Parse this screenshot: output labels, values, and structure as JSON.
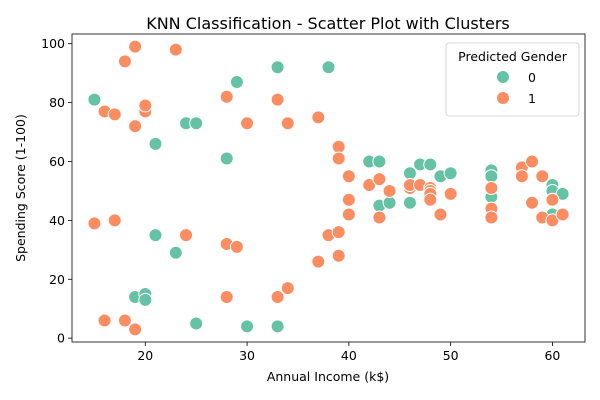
{
  "chart_data": {
    "type": "scatter",
    "title": "KNN Classification - Scatter Plot with Clusters",
    "xlabel": "Annual Income (k$)",
    "ylabel": "Spending Score (1-100)",
    "xlim": [
      12.8,
      63.2
    ],
    "ylim": [
      -1.3,
      103.3
    ],
    "xticks": [
      20,
      30,
      40,
      50,
      60
    ],
    "yticks": [
      0,
      20,
      40,
      60,
      80,
      100
    ],
    "grid": false,
    "legend": {
      "title": "Predicted Gender",
      "placement": "top-right"
    },
    "series": [
      {
        "name": "0",
        "color": "#66c2a5",
        "points": [
          [
            15,
            81
          ],
          [
            19,
            14
          ],
          [
            20,
            15
          ],
          [
            20,
            13
          ],
          [
            21,
            66
          ],
          [
            21,
            35
          ],
          [
            23,
            29
          ],
          [
            24,
            73
          ],
          [
            25,
            73
          ],
          [
            25,
            5
          ],
          [
            28,
            61
          ],
          [
            29,
            87
          ],
          [
            30,
            4
          ],
          [
            33,
            92
          ],
          [
            33,
            4
          ],
          [
            38,
            92
          ],
          [
            42,
            60
          ],
          [
            43,
            60
          ],
          [
            43,
            45
          ],
          [
            44,
            46
          ],
          [
            46,
            56
          ],
          [
            46,
            46
          ],
          [
            47,
            59
          ],
          [
            48,
            59
          ],
          [
            49,
            55
          ],
          [
            50,
            56
          ],
          [
            54,
            57
          ],
          [
            54,
            55
          ],
          [
            54,
            48
          ],
          [
            60,
            52
          ],
          [
            60,
            50
          ],
          [
            60,
            42
          ],
          [
            61,
            49
          ]
        ]
      },
      {
        "name": "1",
        "color": "#fc8d62",
        "points": [
          [
            15,
            39
          ],
          [
            16,
            77
          ],
          [
            16,
            6
          ],
          [
            17,
            76
          ],
          [
            17,
            40
          ],
          [
            18,
            94
          ],
          [
            18,
            6
          ],
          [
            19,
            99
          ],
          [
            19,
            72
          ],
          [
            19,
            3
          ],
          [
            20,
            77
          ],
          [
            20,
            79
          ],
          [
            23,
            98
          ],
          [
            24,
            35
          ],
          [
            28,
            82
          ],
          [
            28,
            32
          ],
          [
            28,
            14
          ],
          [
            29,
            31
          ],
          [
            30,
            73
          ],
          [
            33,
            81
          ],
          [
            33,
            14
          ],
          [
            34,
            73
          ],
          [
            34,
            17
          ],
          [
            37,
            75
          ],
          [
            37,
            26
          ],
          [
            38,
            35
          ],
          [
            39,
            65
          ],
          [
            39,
            61
          ],
          [
            39,
            36
          ],
          [
            39,
            28
          ],
          [
            40,
            55
          ],
          [
            40,
            47
          ],
          [
            40,
            42
          ],
          [
            42,
            52
          ],
          [
            43,
            54
          ],
          [
            43,
            41
          ],
          [
            44,
            50
          ],
          [
            46,
            51
          ],
          [
            46,
            52
          ],
          [
            47,
            52
          ],
          [
            48,
            51
          ],
          [
            48,
            50
          ],
          [
            48,
            49
          ],
          [
            48,
            47
          ],
          [
            49,
            42
          ],
          [
            50,
            49
          ],
          [
            54,
            51
          ],
          [
            54,
            44
          ],
          [
            54,
            41
          ],
          [
            57,
            58
          ],
          [
            57,
            55
          ],
          [
            58,
            60
          ],
          [
            58,
            46
          ],
          [
            59,
            55
          ],
          [
            59,
            41
          ],
          [
            60,
            47
          ],
          [
            60,
            40
          ],
          [
            61,
            42
          ]
        ]
      }
    ]
  }
}
